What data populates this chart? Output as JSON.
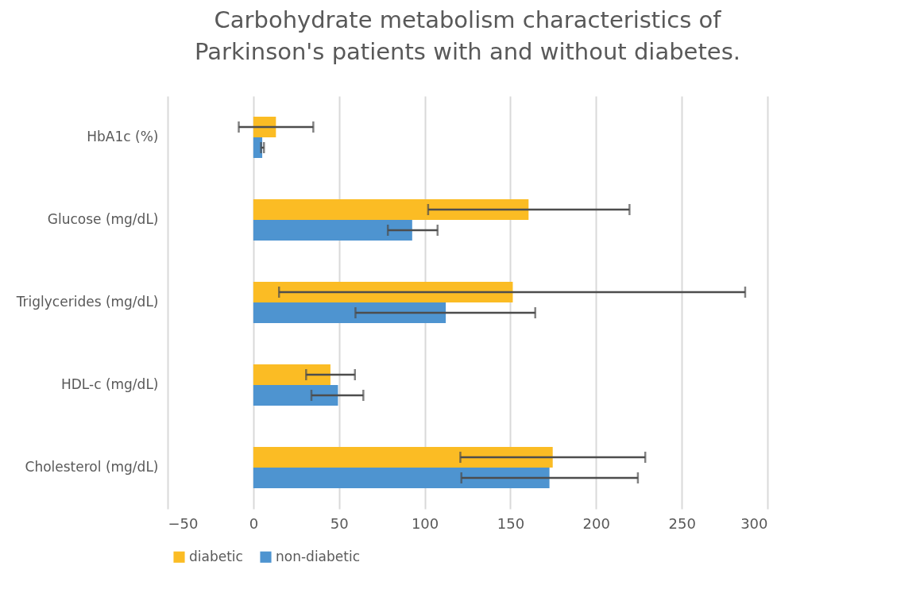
{
  "chart_data": {
    "type": "bar",
    "orientation": "horizontal",
    "title": "Carbohydrate metabolism characteristics of Parkinson's patients with and without diabetes.",
    "categories": [
      "HbA1c (%)",
      "Glucose  (mg/dL)",
      "Triglycerides (mg/dL)",
      "HDL-c (mg/dL)",
      "Cholesterol (mg/dL)"
    ],
    "series": [
      {
        "name": "diabetic",
        "color": "#fbbc24",
        "values": [
          13.2,
          160.6,
          151.4,
          45,
          174.7
        ],
        "errors": [
          [
            -8.5,
            35
          ],
          [
            102,
            219.5
          ],
          [
            15,
            287
          ],
          [
            30.8,
            59.3
          ],
          [
            120.8,
            228.7
          ]
        ]
      },
      {
        "name": "non-diabetic",
        "color": "#4e94d0",
        "values": [
          5.2,
          92.7,
          112.3,
          49.4,
          172.8
        ],
        "errors": [
          [
            4.5,
            6.2
          ],
          [
            78.5,
            107.5
          ],
          [
            59.6,
            164.5
          ],
          [
            33.9,
            64.2
          ],
          [
            121.4,
            224.4
          ]
        ]
      }
    ],
    "xlim": [
      -50,
      300
    ],
    "xticks": [
      -50,
      0,
      50,
      100,
      150,
      200,
      250,
      300
    ],
    "grid": "x",
    "legend": "bottom"
  }
}
